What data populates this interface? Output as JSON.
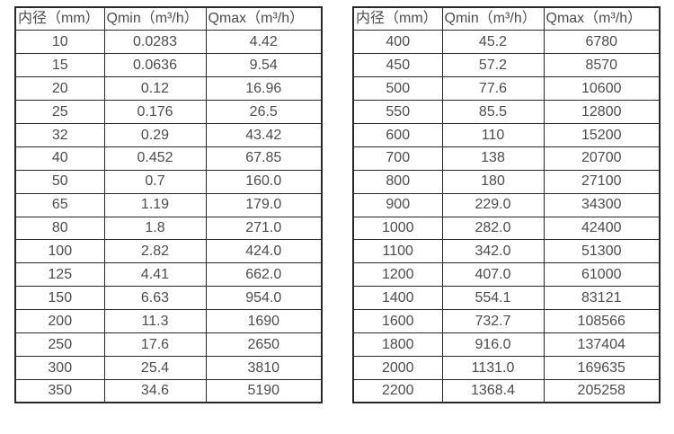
{
  "colors": {
    "border": "#282828",
    "text": "#4c4c4c",
    "background": "#ffffff"
  },
  "table_header": {
    "col_diameter": "内径（mm）",
    "col_qmin": "Qmin（m³/h）",
    "col_qmax": "Qmax（m³/h）"
  },
  "tables": [
    {
      "name": "small-diameter-flow-table",
      "rows": [
        [
          "10",
          "0.0283",
          "4.42"
        ],
        [
          "15",
          "0.0636",
          "9.54"
        ],
        [
          "20",
          "0.12",
          "16.96"
        ],
        [
          "25",
          "0.176",
          "26.5"
        ],
        [
          "32",
          "0.29",
          "43.42"
        ],
        [
          "40",
          "0.452",
          "67.85"
        ],
        [
          "50",
          "0.7",
          "160.0"
        ],
        [
          "65",
          "1.19",
          "179.0"
        ],
        [
          "80",
          "1.8",
          "271.0"
        ],
        [
          "100",
          "2.82",
          "424.0"
        ],
        [
          "125",
          "4.41",
          "662.0"
        ],
        [
          "150",
          "6.63",
          "954.0"
        ],
        [
          "200",
          "11.3",
          "1690"
        ],
        [
          "250",
          "17.6",
          "2650"
        ],
        [
          "300",
          "25.4",
          "3810"
        ],
        [
          "350",
          "34.6",
          "5190"
        ]
      ]
    },
    {
      "name": "large-diameter-flow-table",
      "rows": [
        [
          "400",
          "45.2",
          "6780"
        ],
        [
          "450",
          "57.2",
          "8570"
        ],
        [
          "500",
          "77.6",
          "10600"
        ],
        [
          "550",
          "85.5",
          "12800"
        ],
        [
          "600",
          "110",
          "15200"
        ],
        [
          "700",
          "138",
          "20700"
        ],
        [
          "800",
          "180",
          "27100"
        ],
        [
          "900",
          "229.0",
          "34300"
        ],
        [
          "1000",
          "282.0",
          "42400"
        ],
        [
          "1100",
          "342.0",
          "51300"
        ],
        [
          "1200",
          "407.0",
          "61000"
        ],
        [
          "1400",
          "554.1",
          "83121"
        ],
        [
          "1600",
          "732.7",
          "108566"
        ],
        [
          "1800",
          "916.0",
          "137404"
        ],
        [
          "2000",
          "1131.0",
          "169635"
        ],
        [
          "2200",
          "1368.4",
          "205258"
        ]
      ]
    }
  ]
}
